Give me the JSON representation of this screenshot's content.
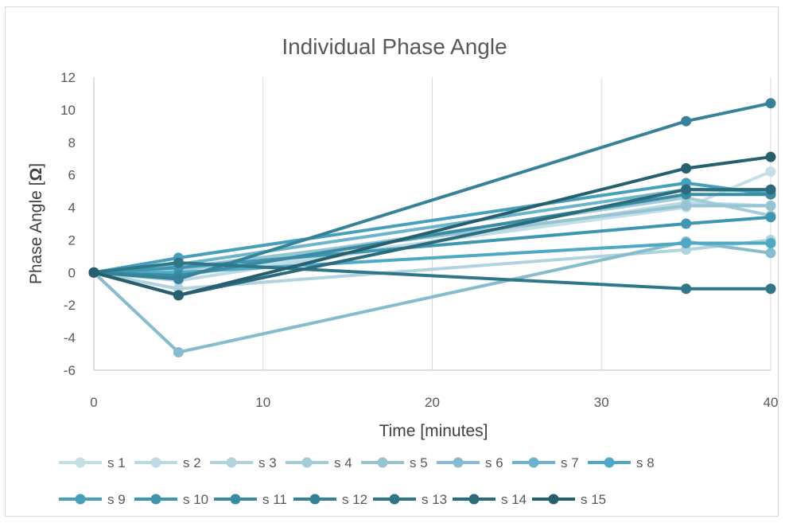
{
  "chart_data": {
    "type": "line",
    "title": "Individual Phase Angle",
    "xlabel": "Time [minutes]",
    "ylabel_prefix": "Phase Angle [",
    "ylabel_unit": "Ω",
    "ylabel_suffix": "]",
    "x": [
      0,
      5,
      35,
      40
    ],
    "xlim": [
      0,
      40
    ],
    "ylim": [
      -6,
      12
    ],
    "x_ticks": [
      "0",
      "10",
      "20",
      "30",
      "40"
    ],
    "y_ticks": [
      "12",
      "10",
      "8",
      "6",
      "4",
      "2",
      "0",
      "-2",
      "-4",
      "-6"
    ],
    "grid": "vertical",
    "legend_position": "bottom",
    "series": [
      {
        "name": "s 1",
        "color": "#c5dfe6",
        "values": [
          0,
          -0.2,
          4.0,
          6.2
        ]
      },
      {
        "name": "s 2",
        "color": "#bcdae3",
        "values": [
          0,
          -0.5,
          4.3,
          4.1
        ]
      },
      {
        "name": "s 3",
        "color": "#b1d3dd",
        "values": [
          0,
          -1.0,
          1.4,
          2.0
        ]
      },
      {
        "name": "s 4",
        "color": "#a4ccd8",
        "values": [
          0,
          0.1,
          4.6,
          3.5
        ]
      },
      {
        "name": "s 5",
        "color": "#96c4d3",
        "values": [
          0,
          0.3,
          4.1,
          4.1
        ]
      },
      {
        "name": "s 6",
        "color": "#86bccd",
        "values": [
          0,
          -4.9,
          1.9,
          1.2
        ]
      },
      {
        "name": "s 7",
        "color": "#6bb4cb",
        "values": [
          0,
          0.5,
          5.1,
          5.0
        ]
      },
      {
        "name": "s 8",
        "color": "#4ea9c4",
        "values": [
          0,
          0.0,
          1.8,
          1.8
        ]
      },
      {
        "name": "s 9",
        "color": "#46a0bb",
        "values": [
          0,
          0.9,
          5.5,
          4.8
        ]
      },
      {
        "name": "s 10",
        "color": "#3f96b0",
        "values": [
          0,
          0.3,
          3.0,
          3.4
        ]
      },
      {
        "name": "s 11",
        "color": "#3a8ca4",
        "values": [
          0,
          -0.2,
          4.8,
          4.8
        ]
      },
      {
        "name": "s 12",
        "color": "#368298",
        "values": [
          0,
          -0.4,
          9.3,
          10.4
        ]
      },
      {
        "name": "s 13",
        "color": "#2f7688",
        "values": [
          0,
          0.6,
          -1.0,
          -1.0
        ]
      },
      {
        "name": "s 14",
        "color": "#2b6b7c",
        "values": [
          0,
          -1.4,
          5.1,
          5.1
        ]
      },
      {
        "name": "s 15",
        "color": "#265f6e",
        "values": [
          0,
          -1.4,
          6.4,
          7.1
        ]
      }
    ]
  }
}
